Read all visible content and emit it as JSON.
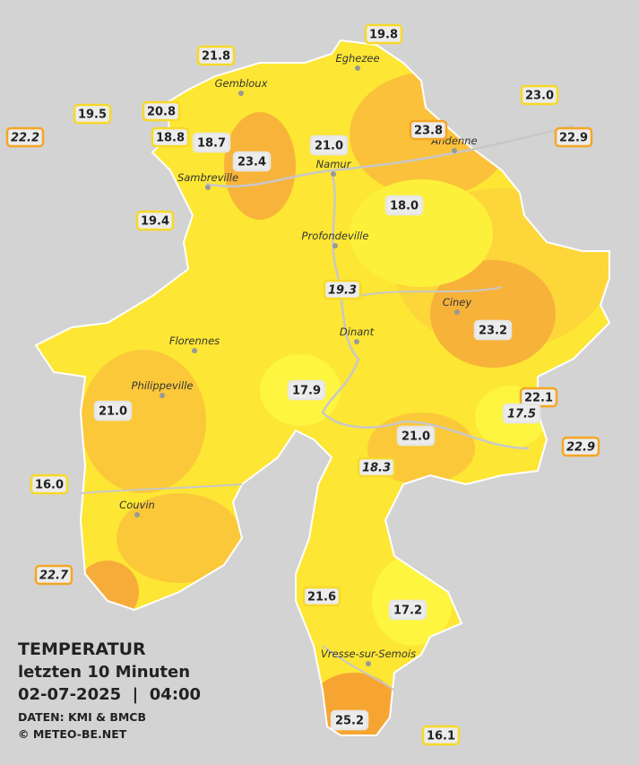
{
  "title": "TEMPERATUR",
  "subtitle": "letzten 10 Minuten",
  "datetime": "02-07-2025  |  04:00",
  "source": "DATEN: KMI & BMCB",
  "credit": "© METEO-BE.NET",
  "cities": [
    "Eghezee",
    "Gembloux",
    "Andenne",
    "Namur",
    "Sambreville",
    "Profondeville",
    "Ciney",
    "Dinant",
    "Florennes",
    "Philippeville",
    "Couvin",
    "Vresse-sur-Semois"
  ],
  "stations": [
    "19.8",
    "21.8",
    "23.0",
    "19.5",
    "20.8",
    "22.2",
    "18.8",
    "18.7",
    "21.0",
    "23.8",
    "22.9",
    "23.4",
    "18.0",
    "19.4",
    "19.3",
    "23.2",
    "17.9",
    "22.1",
    "17.5",
    "21.0",
    "21.0",
    "22.9",
    "18.3",
    "16.0",
    "22.7",
    "21.6",
    "17.2",
    "25.2",
    "16.1"
  ]
}
